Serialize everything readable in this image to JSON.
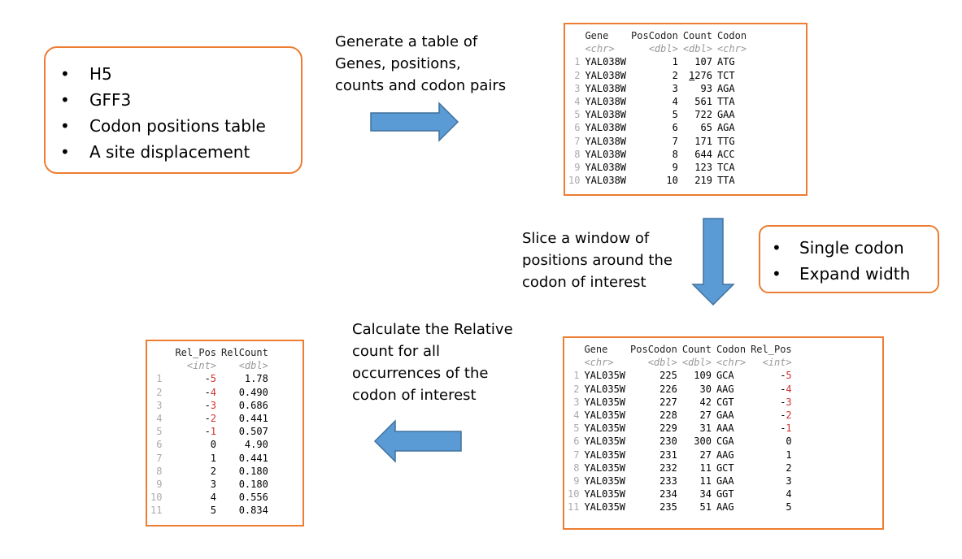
{
  "inputs": [
    "H5",
    "GFF3",
    "Codon positions table",
    "A site displacement"
  ],
  "options": [
    "Single codon",
    "Expand width"
  ],
  "step1_caption": [
    "Generate a table of",
    "Genes, positions,",
    "counts and codon pairs"
  ],
  "step2_caption": [
    "Slice a window of",
    "positions around the",
    "codon of interest"
  ],
  "step3_caption": [
    "Calculate the Relative",
    "count for all",
    "occurrences of the",
    "codon of interest"
  ],
  "table1": {
    "headers": [
      "Gene",
      "PosCodon",
      "Count",
      "Codon"
    ],
    "types": [
      "<chr>",
      "<dbl>",
      "<dbl>",
      "<chr>"
    ],
    "rows": [
      [
        "1",
        "YAL038W",
        "1",
        "107",
        "ATG"
      ],
      [
        "2",
        "YAL038W",
        "2",
        "1276",
        "TCT"
      ],
      [
        "3",
        "YAL038W",
        "3",
        "93",
        "AGA"
      ],
      [
        "4",
        "YAL038W",
        "4",
        "561",
        "TTA"
      ],
      [
        "5",
        "YAL038W",
        "5",
        "722",
        "GAA"
      ],
      [
        "6",
        "YAL038W",
        "6",
        "65",
        "AGA"
      ],
      [
        "7",
        "YAL038W",
        "7",
        "171",
        "TTG"
      ],
      [
        "8",
        "YAL038W",
        "8",
        "644",
        "ACC"
      ],
      [
        "9",
        "YAL038W",
        "9",
        "123",
        "TCA"
      ],
      [
        "10",
        "YAL038W",
        "10",
        "219",
        "TTA"
      ]
    ]
  },
  "table2": {
    "headers": [
      "Gene",
      "PosCodon",
      "Count",
      "Codon",
      "Rel_Pos"
    ],
    "types": [
      "<chr>",
      "<dbl>",
      "<dbl>",
      "<chr>",
      "<int>"
    ],
    "rows": [
      [
        "1",
        "YAL035W",
        "225",
        "109",
        "GCA",
        "-5"
      ],
      [
        "2",
        "YAL035W",
        "226",
        "30",
        "AAG",
        "-4"
      ],
      [
        "3",
        "YAL035W",
        "227",
        "42",
        "CGT",
        "-3"
      ],
      [
        "4",
        "YAL035W",
        "228",
        "27",
        "GAA",
        "-2"
      ],
      [
        "5",
        "YAL035W",
        "229",
        "31",
        "AAA",
        "-1"
      ],
      [
        "6",
        "YAL035W",
        "230",
        "300",
        "CGA",
        "0"
      ],
      [
        "7",
        "YAL035W",
        "231",
        "27",
        "AAG",
        "1"
      ],
      [
        "8",
        "YAL035W",
        "232",
        "11",
        "GCT",
        "2"
      ],
      [
        "9",
        "YAL035W",
        "233",
        "11",
        "GAA",
        "3"
      ],
      [
        "10",
        "YAL035W",
        "234",
        "34",
        "GGT",
        "4"
      ],
      [
        "11",
        "YAL035W",
        "235",
        "51",
        "AAG",
        "5"
      ]
    ]
  },
  "table3": {
    "headers": [
      "Rel_Pos",
      "RelCount"
    ],
    "types": [
      "<int>",
      "<dbl>"
    ],
    "rows": [
      [
        "1",
        "-5",
        "1.78"
      ],
      [
        "2",
        "-4",
        "0.490"
      ],
      [
        "3",
        "-3",
        "0.686"
      ],
      [
        "4",
        "-2",
        "0.441"
      ],
      [
        "5",
        "-1",
        "0.507"
      ],
      [
        "6",
        "0",
        "4.90"
      ],
      [
        "7",
        "1",
        "0.441"
      ],
      [
        "8",
        "2",
        "0.180"
      ],
      [
        "9",
        "3",
        "0.180"
      ],
      [
        "10",
        "4",
        "0.556"
      ],
      [
        "11",
        "5",
        "0.834"
      ]
    ]
  },
  "colors": {
    "box_border": "#ed7d31",
    "arrow_fill": "#5b9bd5",
    "arrow_stroke": "#41719c",
    "negative": "#d32f2f"
  }
}
